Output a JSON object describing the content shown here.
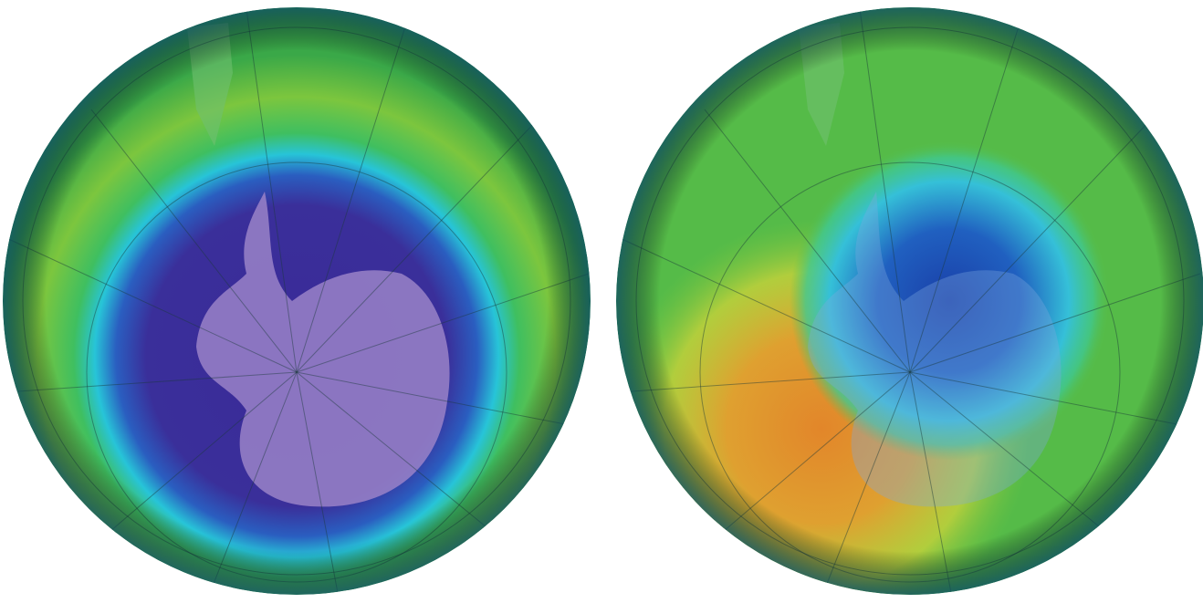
{
  "maps": [
    {
      "id": "left",
      "colors": {
        "rim": "#1f6f7a",
        "outer": "#3fb84a",
        "mid": "#8cc83a",
        "ring": "#27c4d8",
        "hole": "#3a2f9a",
        "land": "#9a82c8"
      }
    },
    {
      "id": "right",
      "colors": {
        "rim": "#1f6f7a",
        "outer": "#4cbb46",
        "high": "#e09a2a",
        "yellow": "#d8d23a",
        "ring": "#3cc8c8",
        "hole": "#1f55b5",
        "land": "#6f8fd0"
      }
    }
  ]
}
